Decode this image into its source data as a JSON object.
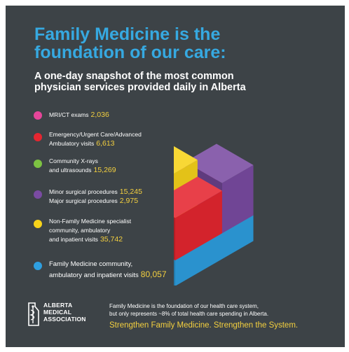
{
  "title": "Family Medicine is the foundation of our care:",
  "subtitle": "A one-day snapshot of the most common physician services provided daily in Alberta",
  "chart_data": {
    "type": "treemap",
    "title": "Family Medicine is the foundation of our care:",
    "subtitle": "A one-day snapshot of the most common physician services provided daily in Alberta",
    "legend_position": "left",
    "series": [
      {
        "name": "MRI/CT exams",
        "value": 2036,
        "value_label": "2,036",
        "color": "#e6469a",
        "lines": [
          "MRI/CT exams"
        ]
      },
      {
        "name": "Emergency/Urgent Care/Advanced Ambulatory visits",
        "value": 6613,
        "value_label": "6,613",
        "color": "#e52630",
        "lines": [
          "Emergency/Urgent Care/Advanced",
          "Ambulatory visits"
        ]
      },
      {
        "name": "Community X-rays and ultrasounds",
        "value": 15269,
        "value_label": "15,269",
        "color": "#7dc242",
        "lines": [
          "Community X-rays",
          "and ultrasounds"
        ]
      },
      {
        "name": "Minor surgical procedures / Major surgical procedures",
        "values": [
          15245,
          2975
        ],
        "value_labels": [
          "15,245",
          "2,975"
        ],
        "color": "#7a4ba2",
        "lines": [
          "Minor surgical procedures",
          "Major surgical procedures"
        ]
      },
      {
        "name": "Non-Family Medicine specialist community, ambulatory and inpatient visits",
        "value": 35742,
        "value_label": "35,742",
        "color": "#f7d31a",
        "lines": [
          "Non-Family Medicine specialist",
          "community, ambulatory",
          "and inpatient visits"
        ]
      },
      {
        "name": "Family Medicine community, ambulatory and inpatient visits",
        "value": 80057,
        "value_label": "80,057",
        "color": "#2e9fe0",
        "lines": [
          "Family Medicine community,",
          "ambulatory and inpatient visits"
        ]
      }
    ]
  },
  "logo": {
    "icon": "alberta-map-caduceus-icon",
    "lines": [
      "ALBERTA",
      "MEDICAL",
      "ASSOCIATION"
    ]
  },
  "footer": {
    "lines": [
      "Family Medicine is the foundation of our health care system,",
      "but only represents ~8% of total health care spending in Alberta."
    ],
    "tagline": "Strengthen Family Medicine. Strengthen the System."
  }
}
